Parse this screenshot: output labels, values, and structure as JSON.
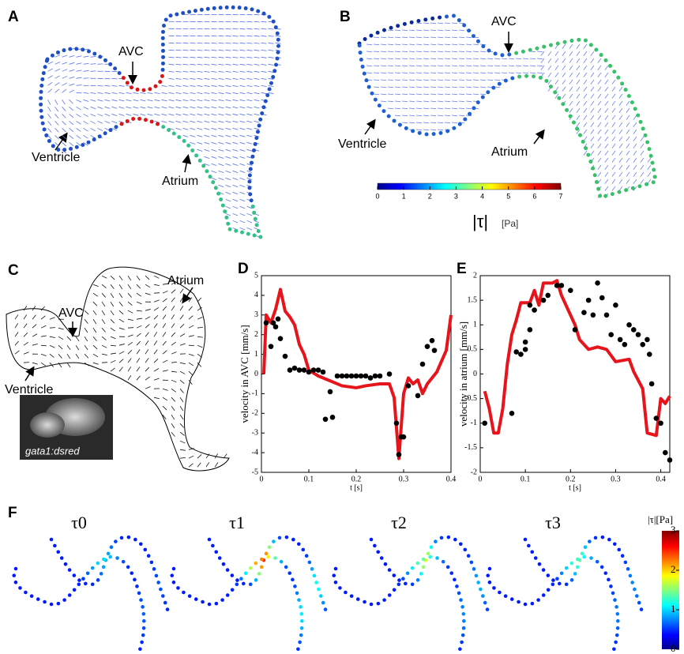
{
  "panels": {
    "A": {
      "label": "A",
      "annotations": [
        "AVC",
        "Ventricle",
        "Atrium"
      ]
    },
    "B": {
      "label": "B",
      "annotations": [
        "AVC",
        "Ventricle",
        "Atrium"
      ],
      "colorbar": {
        "lim": [
          0,
          7
        ],
        "ticks": [
          0,
          1,
          2,
          3,
          4,
          5,
          6,
          7
        ],
        "label": "|τ|",
        "unit": "[Pa]"
      }
    },
    "C": {
      "label": "C",
      "annotations": [
        "Atrium",
        "AVC",
        "Ventricle"
      ],
      "inset": "gata1:dsred"
    },
    "F": {
      "label": "F",
      "titles": [
        "τ0",
        "τ1",
        "τ2",
        "τ3"
      ],
      "colorbar": {
        "lim": [
          0,
          3
        ],
        "ticks": [
          0,
          1,
          2,
          3
        ],
        "label": "|τ|[Pa]"
      }
    }
  },
  "chart_data": [
    {
      "type": "line",
      "label": "D",
      "xlabel": "t [s]",
      "ylabel": "velocity in AVC [mm/s]",
      "xlim": [
        0,
        0.4
      ],
      "xticks": [
        0,
        0.1,
        0.2,
        0.3,
        0.4
      ],
      "ylim": [
        -5,
        5
      ],
      "yticks": [
        -5,
        -4,
        -3,
        -2,
        -1,
        0,
        1,
        2,
        3,
        4,
        5
      ],
      "series": [
        {
          "type": "line",
          "color": "#e8141c",
          "x": [
            0.005,
            0.01,
            0.02,
            0.03,
            0.04,
            0.05,
            0.06,
            0.07,
            0.08,
            0.09,
            0.1,
            0.12,
            0.15,
            0.17,
            0.2,
            0.22,
            0.25,
            0.27,
            0.28,
            0.29,
            0.3,
            0.31,
            0.32,
            0.33,
            0.34,
            0.35,
            0.37,
            0.39,
            0.4
          ],
          "values": [
            0,
            3,
            2.6,
            3.3,
            4.3,
            3.2,
            2.9,
            2.5,
            1.5,
            1,
            0.2,
            -0.1,
            -0.4,
            -0.6,
            -0.7,
            -0.6,
            -0.5,
            -0.5,
            -1.2,
            -4.3,
            -1,
            -0.2,
            -0.5,
            -0.3,
            -1,
            -0.5,
            0.1,
            1.2,
            3
          ]
        },
        {
          "type": "scatter",
          "color": "#000000",
          "x": [
            0.01,
            0.02,
            0.025,
            0.03,
            0.035,
            0.04,
            0.05,
            0.06,
            0.07,
            0.08,
            0.09,
            0.1,
            0.11,
            0.12,
            0.13,
            0.135,
            0.145,
            0.15,
            0.16,
            0.17,
            0.18,
            0.19,
            0.2,
            0.21,
            0.22,
            0.23,
            0.24,
            0.25,
            0.27,
            0.285,
            0.29,
            0.295,
            0.3,
            0.31,
            0.33,
            0.34,
            0.35,
            0.36,
            0.365
          ],
          "values": [
            2.6,
            1.4,
            2.6,
            2.4,
            2.8,
            1.8,
            0.9,
            0.2,
            0.3,
            0.2,
            0.2,
            0.1,
            0.2,
            0.2,
            0.1,
            -2.3,
            -0.9,
            -2.2,
            -0.1,
            -0.1,
            -0.1,
            -0.1,
            -0.1,
            -0.1,
            -0.1,
            -0.2,
            -0.1,
            -0.1,
            0,
            -2.5,
            -4.1,
            -3.2,
            -3.2,
            -0.6,
            -1.1,
            0.5,
            1.4,
            1.7,
            1.2
          ]
        }
      ]
    },
    {
      "type": "line",
      "label": "E",
      "xlabel": "t [s]",
      "ylabel": "velocity in atrium [mm/s]",
      "xlim": [
        0,
        0.42
      ],
      "xticks": [
        0,
        0.1,
        0.2,
        0.3,
        0.4
      ],
      "ylim": [
        -2,
        2
      ],
      "yticks": [
        -2,
        -1.5,
        -1,
        -0.5,
        0,
        0.5,
        1,
        1.5,
        2
      ],
      "series": [
        {
          "type": "line",
          "color": "#e8141c",
          "x": [
            0.01,
            0.02,
            0.03,
            0.04,
            0.05,
            0.06,
            0.07,
            0.08,
            0.09,
            0.11,
            0.12,
            0.13,
            0.14,
            0.16,
            0.17,
            0.18,
            0.2,
            0.21,
            0.22,
            0.24,
            0.26,
            0.28,
            0.3,
            0.33,
            0.34,
            0.36,
            0.37,
            0.39,
            0.4,
            0.41,
            0.42
          ],
          "values": [
            -0.35,
            -0.7,
            -1.2,
            -1.2,
            -0.7,
            0.2,
            0.8,
            1.1,
            1.45,
            1.45,
            1.7,
            1.4,
            1.85,
            1.85,
            1.9,
            1.6,
            1.2,
            1,
            0.7,
            0.5,
            0.55,
            0.5,
            0.25,
            0.3,
            0.05,
            -0.3,
            -1.2,
            -1.25,
            -0.5,
            -0.6,
            -0.45
          ]
        },
        {
          "type": "scatter",
          "color": "#000000",
          "x": [
            0.01,
            0.07,
            0.08,
            0.09,
            0.1,
            0.1,
            0.11,
            0.11,
            0.12,
            0.14,
            0.15,
            0.17,
            0.18,
            0.2,
            0.21,
            0.23,
            0.24,
            0.25,
            0.26,
            0.27,
            0.28,
            0.29,
            0.3,
            0.31,
            0.32,
            0.33,
            0.34,
            0.35,
            0.36,
            0.37,
            0.375,
            0.38,
            0.39,
            0.4,
            0.41,
            0.42
          ],
          "values": [
            -1,
            -0.8,
            0.45,
            0.4,
            0.5,
            0.65,
            0.9,
            1.4,
            1.3,
            1.5,
            1.6,
            1.8,
            1.8,
            1.7,
            0.9,
            1.25,
            1.5,
            1.2,
            1.85,
            1.55,
            1.2,
            0.8,
            1.4,
            0.7,
            0.6,
            1,
            0.9,
            0.8,
            0.6,
            0.7,
            0.4,
            -0.2,
            -0.9,
            -1,
            -1.6,
            -1.75
          ]
        }
      ]
    }
  ]
}
